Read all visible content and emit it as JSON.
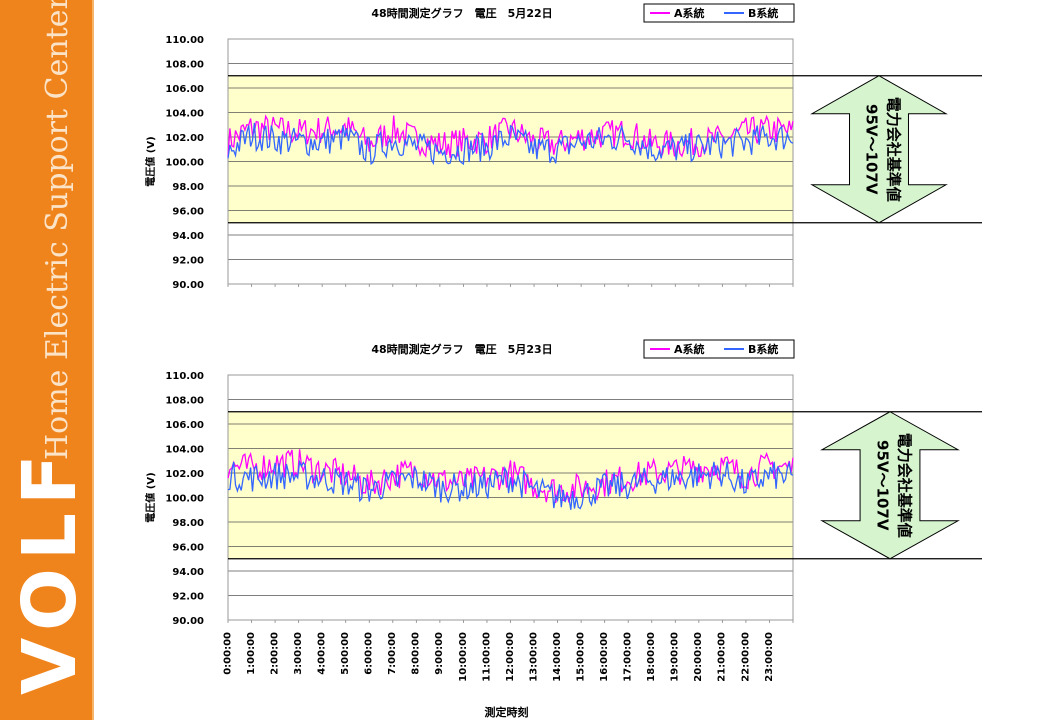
{
  "sidebar": {
    "logo": "VOLF",
    "tagline": "Home Electric Support Center"
  },
  "standard": {
    "range_label": "95V～107V",
    "note_label": "電力会社基準値"
  },
  "chart_data": [
    {
      "type": "line",
      "title": "48時間測定グラフ　電圧　5月22日",
      "ylabel": "電圧値 (V)",
      "xlabel": "",
      "ylim": [
        90,
        110
      ],
      "ytick_labels": [
        "110.00",
        "108.00",
        "106.00",
        "104.00",
        "102.00",
        "100.00",
        "98.00",
        "96.00",
        "94.00",
        "92.00",
        "90.00"
      ],
      "xlim": [
        0,
        24
      ],
      "reference_lines": [
        107,
        95
      ],
      "grid": true,
      "legend": "top-right",
      "series": [
        {
          "name": "A系統",
          "color": "#ff00ff",
          "x": [
            0,
            1,
            2,
            3,
            4,
            5,
            6,
            7,
            8,
            9,
            10,
            11,
            12,
            13,
            14,
            15,
            16,
            17,
            18,
            19,
            20,
            21,
            22,
            23,
            24
          ],
          "y": [
            101.6,
            102.8,
            102.6,
            102.4,
            102.6,
            102.8,
            101.4,
            102.6,
            101.8,
            101.4,
            101.6,
            101.8,
            102.6,
            101.6,
            101.4,
            102.0,
            102.2,
            102.4,
            101.4,
            101.4,
            101.6,
            101.8,
            102.4,
            102.6,
            102.4
          ]
        },
        {
          "name": "B系統",
          "color": "#3366ff",
          "x": [
            0,
            1,
            2,
            3,
            4,
            5,
            6,
            7,
            8,
            9,
            10,
            11,
            12,
            13,
            14,
            15,
            16,
            17,
            18,
            19,
            20,
            21,
            22,
            23,
            24
          ],
          "y": [
            100.8,
            102.2,
            101.8,
            101.6,
            101.6,
            102.0,
            100.8,
            101.8,
            101.2,
            100.8,
            101.0,
            101.2,
            102.0,
            101.0,
            101.0,
            101.6,
            101.8,
            102.0,
            101.0,
            101.0,
            101.2,
            101.4,
            101.6,
            102.0,
            102.0
          ]
        }
      ]
    },
    {
      "type": "line",
      "title": "48時間測定グラフ　電圧　5月23日",
      "ylabel": "電圧値 (V)",
      "xlabel": "測定時刻",
      "ylim": [
        90,
        110
      ],
      "ytick_labels": [
        "110.00",
        "108.00",
        "106.00",
        "104.00",
        "102.00",
        "100.00",
        "98.00",
        "96.00",
        "94.00",
        "92.00",
        "90.00"
      ],
      "xlim": [
        0,
        24
      ],
      "categories": [
        "0:00:00",
        "1:00:00",
        "2:00:00",
        "3:00:00",
        "4:00:00",
        "5:00:00",
        "6:00:00",
        "7:00:00",
        "8:00:00",
        "9:00:00",
        "10:00:00",
        "11:00:00",
        "12:00:00",
        "13:00:00",
        "14:00:00",
        "15:00:00",
        "16:00:00",
        "17:00:00",
        "18:00:00",
        "19:00:00",
        "20:00:00",
        "21:00:00",
        "22:00:00",
        "23:00:00"
      ],
      "reference_lines": [
        107,
        95
      ],
      "grid": true,
      "legend": "top-right",
      "series": [
        {
          "name": "A系統",
          "color": "#ff00ff",
          "x": [
            0,
            1,
            2,
            3,
            4,
            5,
            6,
            7,
            8,
            9,
            10,
            11,
            12,
            13,
            14,
            15,
            16,
            17,
            18,
            19,
            20,
            21,
            22,
            23,
            24
          ],
          "y": [
            102.6,
            102.4,
            102.8,
            102.8,
            102.2,
            101.8,
            101.0,
            101.8,
            102.2,
            101.4,
            101.2,
            101.6,
            102.0,
            101.0,
            100.6,
            100.8,
            101.2,
            101.6,
            102.0,
            102.2,
            102.4,
            102.6,
            101.8,
            102.6,
            102.4
          ]
        },
        {
          "name": "B系統",
          "color": "#3366ff",
          "x": [
            0,
            1,
            2,
            3,
            4,
            5,
            6,
            7,
            8,
            9,
            10,
            11,
            12,
            13,
            14,
            15,
            16,
            17,
            18,
            19,
            20,
            21,
            22,
            23,
            24
          ],
          "y": [
            101.8,
            101.6,
            101.8,
            101.8,
            101.6,
            101.2,
            100.6,
            101.2,
            101.6,
            100.8,
            100.8,
            101.0,
            101.6,
            100.6,
            100.0,
            100.2,
            100.8,
            101.0,
            101.4,
            101.6,
            101.8,
            102.0,
            101.0,
            101.8,
            101.6
          ]
        }
      ]
    }
  ]
}
